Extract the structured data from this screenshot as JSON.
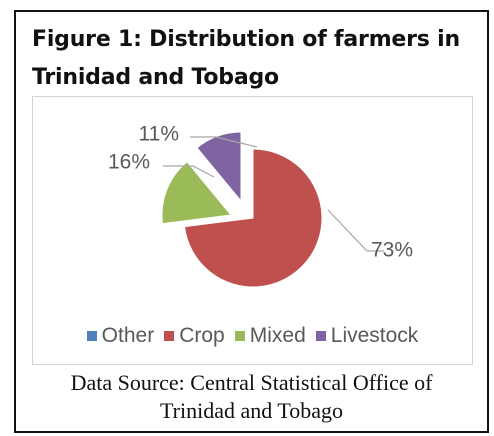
{
  "figure": {
    "title_line1": "Figure 1: Distribution of farmers in",
    "title_line2": "Trinidad and Tobago",
    "source_line1": "Data Source: Central Statistical Office of",
    "source_line2": "Trinidad and Tobago"
  },
  "chart_data": {
    "type": "pie",
    "categories": [
      "Other",
      "Crop",
      "Mixed",
      "Livestock"
    ],
    "values": [
      0,
      73,
      16,
      11
    ],
    "data_labels": [
      "",
      "73%",
      "16%",
      "11%"
    ],
    "colors": [
      "#4F81BD",
      "#C0504D",
      "#9BBB59",
      "#8064A2"
    ],
    "title": "",
    "legend": {
      "position": "bottom",
      "entries": [
        "Other",
        "Crop",
        "Mixed",
        "Livestock"
      ]
    },
    "exploded": true,
    "grid": false
  }
}
